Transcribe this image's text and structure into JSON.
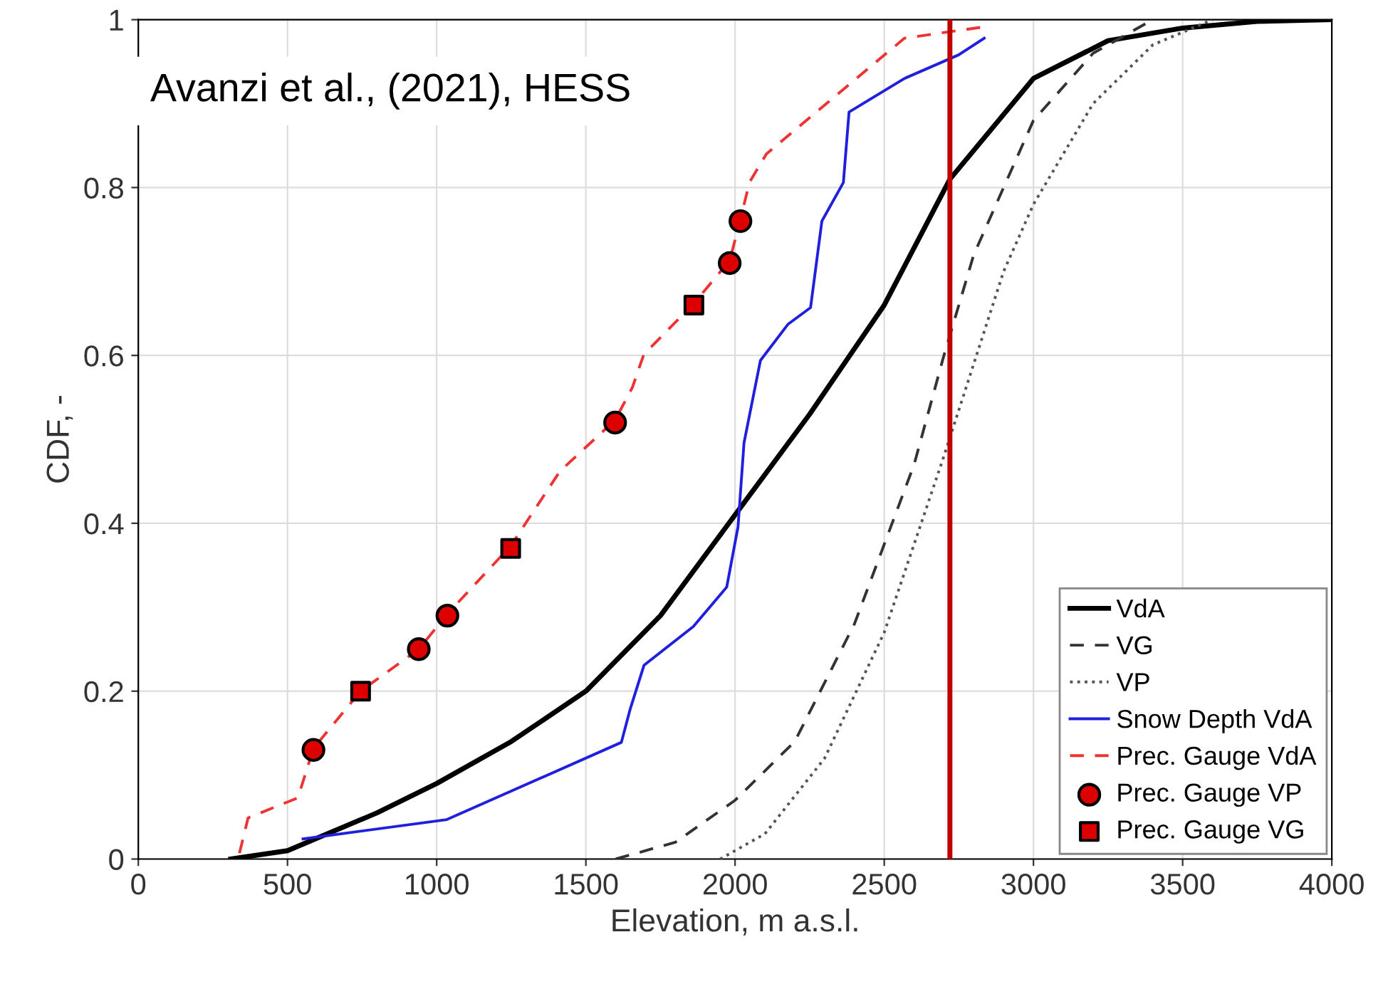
{
  "chart_data": {
    "type": "line",
    "xlabel": "Elevation, m a.s.l.",
    "ylabel": "CDF, -",
    "xlim": [
      0,
      4000
    ],
    "ylim": [
      0,
      1
    ],
    "xticks": [
      0,
      500,
      1000,
      1500,
      2000,
      2500,
      3000,
      3500,
      4000
    ],
    "yticks": [
      0,
      0.2,
      0.4,
      0.6,
      0.8,
      1
    ],
    "grid": true,
    "legend": "bottom right",
    "annotations": [
      "Avanzi et al., (2021), HESS"
    ],
    "ref_lines": [
      {
        "axis": "x",
        "value": 2720,
        "color": "#c00000",
        "line_style": "solid"
      }
    ],
    "series": [
      {
        "name": "VdA",
        "color": "#000000",
        "line_style": "solid",
        "marker": "none",
        "x": [
          310,
          500,
          600,
          800,
          1000,
          1250,
          1500,
          1750,
          2000,
          2250,
          2500,
          2720,
          3000,
          3250,
          3500,
          3750,
          4000
        ],
        "values": [
          0,
          0.01,
          0.025,
          0.055,
          0.09,
          0.14,
          0.2,
          0.29,
          0.41,
          0.53,
          0.66,
          0.81,
          0.93,
          0.975,
          0.99,
          0.998,
          1
        ]
      },
      {
        "name": "VG",
        "color": "#333333",
        "line_style": "dashed",
        "marker": "none",
        "x": [
          1600,
          1800,
          2000,
          2200,
          2400,
          2600,
          2700,
          2800,
          3000,
          3200,
          3400
        ],
        "values": [
          0,
          0.02,
          0.07,
          0.14,
          0.28,
          0.47,
          0.6,
          0.72,
          0.88,
          0.96,
          1
        ]
      },
      {
        "name": "VP",
        "color": "#555555",
        "line_style": "dotted",
        "marker": "none",
        "x": [
          1950,
          2100,
          2300,
          2500,
          2700,
          2900,
          3000,
          3200,
          3400,
          3600
        ],
        "values": [
          0,
          0.03,
          0.12,
          0.27,
          0.48,
          0.7,
          0.78,
          0.9,
          0.97,
          1
        ]
      },
      {
        "name": "Snow Depth VdA",
        "color": "#1f1fdd",
        "line_style": "solid",
        "marker": "none",
        "x": [
          552,
          1034,
          1619,
          1648,
          1695,
          1860,
          1972,
          2010,
          2030,
          2085,
          2177,
          2253,
          2291,
          2363,
          2382,
          2568,
          2749,
          2835
        ],
        "values": [
          0.024,
          0.047,
          0.139,
          0.178,
          0.231,
          0.277,
          0.324,
          0.396,
          0.496,
          0.594,
          0.637,
          0.657,
          0.76,
          0.806,
          0.89,
          0.93,
          0.958,
          0.978
        ]
      },
      {
        "name": "Prec. Gauge VdA",
        "color": "#ee3333",
        "line_style": "dashed",
        "marker": "none",
        "x": [
          339,
          368,
          535,
          587,
          745,
          940,
          1036,
          1248,
          1413,
          1598,
          1656,
          1694,
          1862,
          1982,
          2018,
          2048,
          2105,
          2568,
          2826
        ],
        "values": [
          0.007,
          0.049,
          0.073,
          0.132,
          0.2,
          0.25,
          0.292,
          0.373,
          0.462,
          0.523,
          0.562,
          0.601,
          0.662,
          0.713,
          0.762,
          0.806,
          0.84,
          0.978,
          0.991
        ]
      },
      {
        "name": "Prec. Gauge VP",
        "type": "scatter",
        "color": "#dd0000",
        "marker": "circle",
        "x": [
          587,
          940,
          1036,
          1598,
          1982,
          2018
        ],
        "values": [
          0.13,
          0.25,
          0.29,
          0.52,
          0.71,
          0.76
        ]
      },
      {
        "name": "Prec. Gauge VG",
        "type": "scatter",
        "color": "#dd0000",
        "marker": "square",
        "x": [
          745,
          1248,
          1862
        ],
        "values": [
          0.2,
          0.37,
          0.66
        ]
      }
    ]
  }
}
